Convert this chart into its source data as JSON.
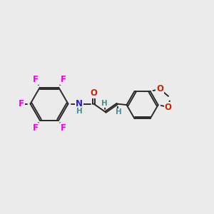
{
  "background_color": "#ebebeb",
  "bond_color": "#2a2a2a",
  "F_color": "#ee00ee",
  "N_color": "#2222cc",
  "O_color": "#cc2200",
  "H_color": "#4a9090",
  "figsize": [
    3.0,
    3.0
  ],
  "dpi": 100,
  "xlim": [
    0,
    10
  ],
  "ylim": [
    1,
    9
  ]
}
